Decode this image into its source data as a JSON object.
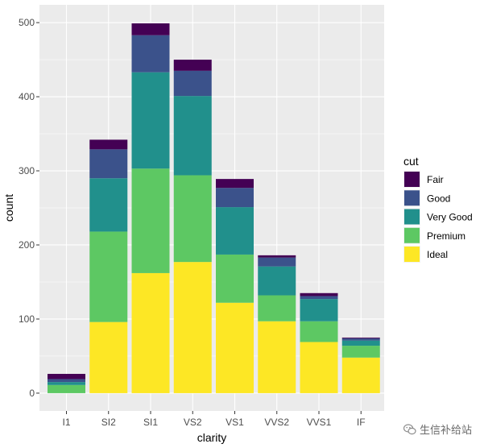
{
  "chart_data": {
    "type": "bar",
    "stacked": true,
    "xlabel": "clarity",
    "ylabel": "count",
    "categories": [
      "I1",
      "SI2",
      "SI1",
      "VS2",
      "VS1",
      "VVS2",
      "VVS1",
      "IF"
    ],
    "ylim": [
      0,
      520
    ],
    "yticks": [
      0,
      100,
      200,
      300,
      400,
      500
    ],
    "grid": true,
    "legend": {
      "title": "cut",
      "position": "right"
    },
    "series": [
      {
        "name": "Ideal",
        "color": "#FDE725",
        "values": [
          0,
          96,
          162,
          177,
          122,
          97,
          69,
          48
        ]
      },
      {
        "name": "Premium",
        "color": "#5DC863",
        "values": [
          11,
          122,
          141,
          117,
          65,
          35,
          28,
          16
        ]
      },
      {
        "name": "Very Good",
        "color": "#21908C",
        "values": [
          4,
          72,
          130,
          107,
          64,
          39,
          30,
          7
        ]
      },
      {
        "name": "Good",
        "color": "#3B528B",
        "values": [
          4,
          39,
          50,
          34,
          26,
          12,
          4,
          3
        ]
      },
      {
        "name": "Fair",
        "color": "#440154",
        "values": [
          7,
          13,
          16,
          15,
          12,
          3,
          4,
          1
        ]
      }
    ]
  },
  "watermark": {
    "text": "生信补给站",
    "icon": "wechat-icon"
  }
}
